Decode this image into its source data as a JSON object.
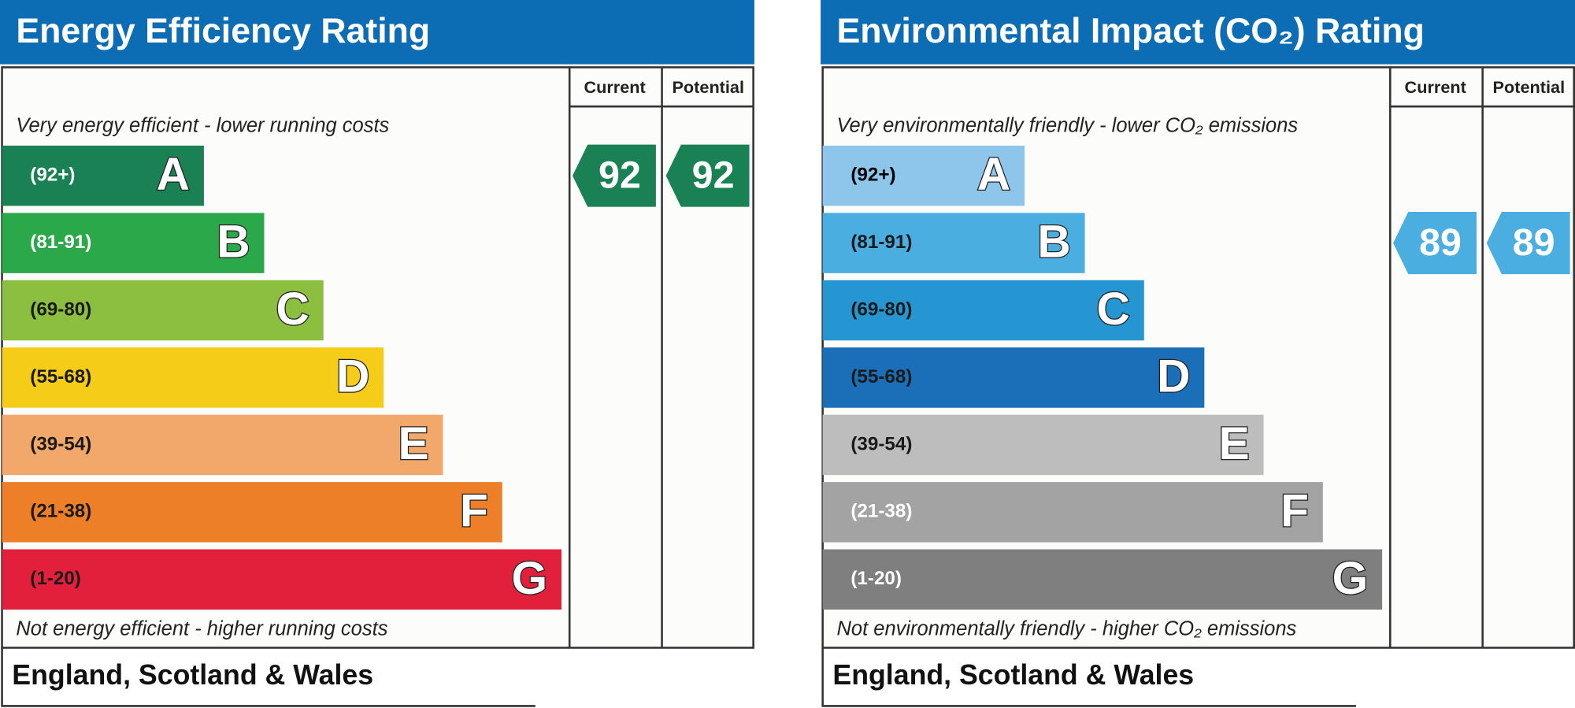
{
  "panels": [
    {
      "title": "Energy Efficiency Rating",
      "headers": [
        "Current",
        "Potential"
      ],
      "top_note": "Very energy efficient - lower running costs",
      "bottom_note": "Not energy efficient - higher running costs",
      "current": 92,
      "potential": 92,
      "arrow_color": "#1a8154",
      "bands": [
        {
          "range": "(92+)",
          "letter": "A",
          "color": "#1a8154",
          "text_color": "#ffffff"
        },
        {
          "range": "(81-91)",
          "letter": "B",
          "color": "#2aa84a",
          "text_color": "#ffffff"
        },
        {
          "range": "(69-80)",
          "letter": "C",
          "color": "#8cbf3f",
          "text_color": "#1a1a1a"
        },
        {
          "range": "(55-68)",
          "letter": "D",
          "color": "#f5cd19",
          "text_color": "#1a1a1a"
        },
        {
          "range": "(39-54)",
          "letter": "E",
          "color": "#f2a86b",
          "text_color": "#1a1a1a"
        },
        {
          "range": "(21-38)",
          "letter": "F",
          "color": "#ec7f27",
          "text_color": "#1a1a1a"
        },
        {
          "range": "(1-20)",
          "letter": "G",
          "color": "#e3203b",
          "text_color": "#1a1a1a"
        }
      ],
      "footer": "England, Scotland & Wales"
    },
    {
      "title": "Environmental Impact (CO₂) Rating",
      "headers": [
        "Current",
        "Potential"
      ],
      "top_note": "Very environmentally friendly - lower CO₂ emissions",
      "bottom_note": "Not environmentally friendly - higher CO₂ emissions",
      "current": 89,
      "potential": 89,
      "arrow_color": "#4aaee0",
      "bands": [
        {
          "range": "(92+)",
          "letter": "A",
          "color": "#8dc6ea",
          "text_color": "#000000"
        },
        {
          "range": "(81-91)",
          "letter": "B",
          "color": "#4aaee0",
          "text_color": "#1a1a1a"
        },
        {
          "range": "(69-80)",
          "letter": "C",
          "color": "#2696d2",
          "text_color": "#1a1a1a"
        },
        {
          "range": "(55-68)",
          "letter": "D",
          "color": "#1a6fb8",
          "text_color": "#1a1a1a"
        },
        {
          "range": "(39-54)",
          "letter": "E",
          "color": "#bdbdbd",
          "text_color": "#1a1a1a"
        },
        {
          "range": "(21-38)",
          "letter": "F",
          "color": "#a3a3a3",
          "text_color": "#ffffff"
        },
        {
          "range": "(1-20)",
          "letter": "G",
          "color": "#7f7f7f",
          "text_color": "#ffffff"
        }
      ],
      "footer": "England, Scotland & Wales"
    }
  ]
}
